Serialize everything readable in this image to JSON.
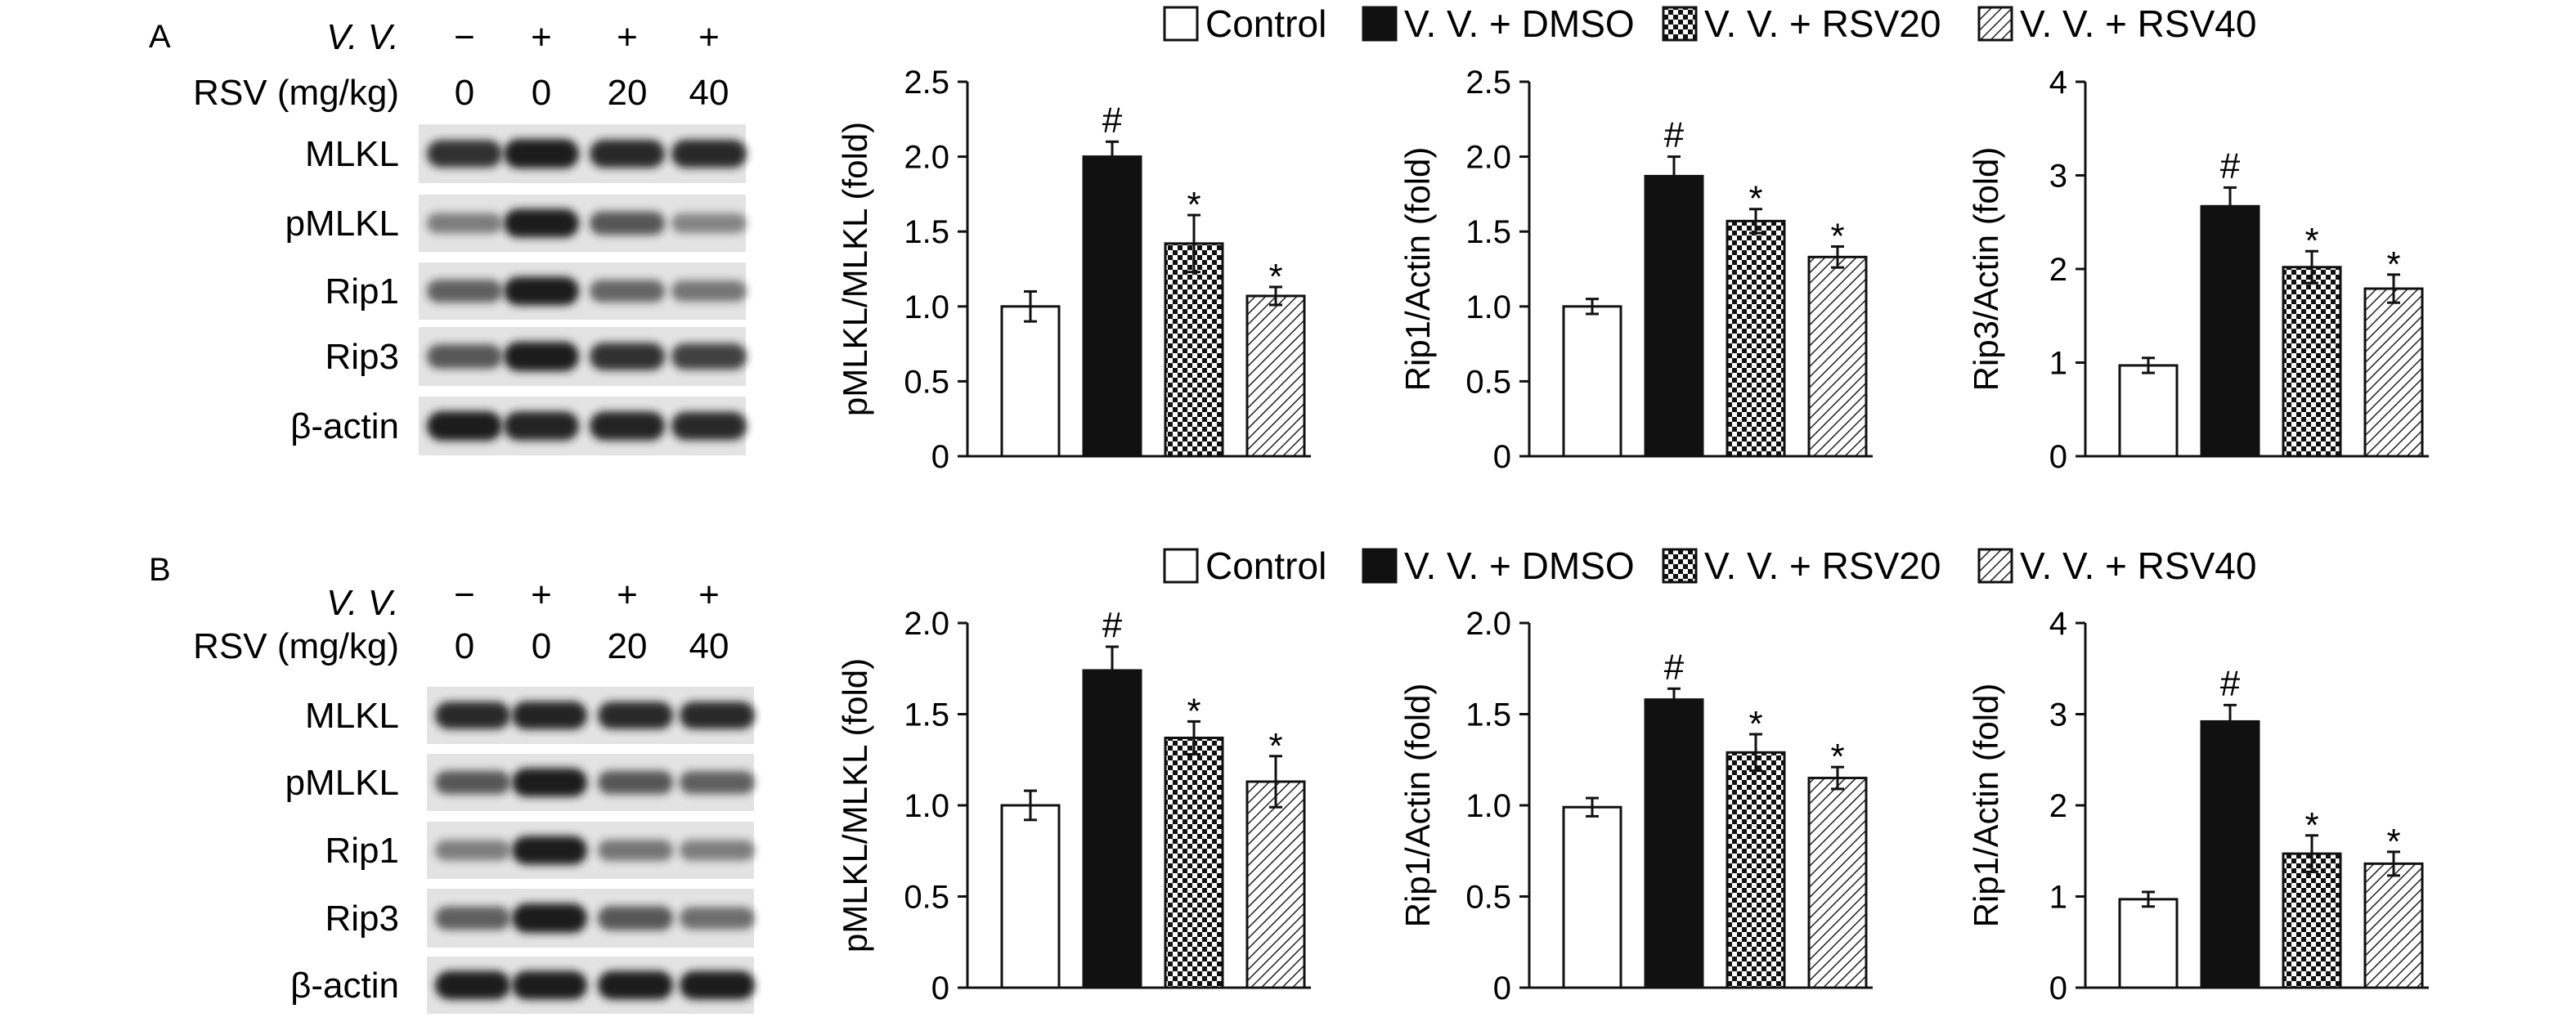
{
  "legend": [
    {
      "label": "Control",
      "fill": "white"
    },
    {
      "label": "V. V. + DMSO",
      "fill": "black"
    },
    {
      "label": "V. V. + RSV20",
      "fill": "checker"
    },
    {
      "label": "V. V. + RSV40",
      "fill": "hatch"
    }
  ],
  "colors": {
    "ink": "#111111",
    "blot_bg": "#e3e3e3",
    "band": "#1e1e1e"
  },
  "panels": [
    {
      "id": "A",
      "letter": "A",
      "blot": {
        "vv_label": "V. V.",
        "rsv_label": "RSV (mg/kg)",
        "vv_marks": [
          "−",
          "+",
          "+",
          "+"
        ],
        "rsv_doses": [
          "0",
          "0",
          "20",
          "40"
        ],
        "rows": [
          "MLKL",
          "pMLKL",
          "Rip1",
          "Rip3",
          "β-actin"
        ]
      }
    },
    {
      "id": "B",
      "letter": "B",
      "blot": {
        "vv_label": "V. V.",
        "rsv_label": "RSV (mg/kg)",
        "vv_marks": [
          "−",
          "+",
          "+",
          "+"
        ],
        "rsv_doses": [
          "0",
          "0",
          "20",
          "40"
        ],
        "rows": [
          "MLKL",
          "pMLKL",
          "Rip1",
          "Rip3",
          "β-actin"
        ]
      }
    }
  ],
  "chart_data": [
    {
      "panel": "A",
      "type": "bar",
      "ylabel": "pMLKL/MLKL (fold)",
      "ylim": [
        0,
        2.5
      ],
      "yticks": [
        "0",
        "0.5",
        "1.0",
        "1.5",
        "2.0",
        "2.5"
      ],
      "values": [
        1.0,
        2.0,
        1.42,
        1.07
      ],
      "errors": [
        0.1,
        0.1,
        0.19,
        0.06
      ],
      "marks": [
        "",
        "#",
        "*",
        "*"
      ]
    },
    {
      "panel": "A",
      "type": "bar",
      "ylabel": "Rip1/Actin (fold)",
      "ylim": [
        0,
        2.5
      ],
      "yticks": [
        "0",
        "0.5",
        "1.0",
        "1.5",
        "2.0",
        "2.5"
      ],
      "values": [
        1.0,
        1.87,
        1.57,
        1.33
      ],
      "errors": [
        0.05,
        0.13,
        0.08,
        0.07
      ],
      "marks": [
        "",
        "#",
        "*",
        "*"
      ]
    },
    {
      "panel": "A",
      "type": "bar",
      "ylabel": "Rip3/Actin (fold)",
      "ylim": [
        0,
        4
      ],
      "yticks": [
        "0",
        "1",
        "2",
        "3",
        "4"
      ],
      "values": [
        0.97,
        2.67,
        2.02,
        1.79
      ],
      "errors": [
        0.08,
        0.2,
        0.17,
        0.15
      ],
      "marks": [
        "",
        "#",
        "*",
        "*"
      ]
    },
    {
      "panel": "B",
      "type": "bar",
      "ylabel": "pMLKL/MLKL (fold)",
      "ylim": [
        0,
        2.0
      ],
      "yticks": [
        "0",
        "0.5",
        "1.0",
        "1.5",
        "2.0"
      ],
      "values": [
        1.0,
        1.74,
        1.37,
        1.13
      ],
      "errors": [
        0.08,
        0.13,
        0.09,
        0.14
      ],
      "marks": [
        "",
        "#",
        "*",
        "*"
      ]
    },
    {
      "panel": "B",
      "type": "bar",
      "ylabel": "Rip1/Actin (fold)",
      "ylim": [
        0,
        2.0
      ],
      "yticks": [
        "0",
        "0.5",
        "1.0",
        "1.5",
        "2.0"
      ],
      "values": [
        0.99,
        1.58,
        1.29,
        1.15
      ],
      "errors": [
        0.05,
        0.06,
        0.1,
        0.06
      ],
      "marks": [
        "",
        "#",
        "*",
        "*"
      ]
    },
    {
      "panel": "B",
      "type": "bar",
      "ylabel": "Rip1/Actin (fold)",
      "ylim": [
        0,
        4
      ],
      "yticks": [
        "0",
        "1",
        "2",
        "3",
        "4"
      ],
      "values": [
        0.97,
        2.92,
        1.47,
        1.36
      ],
      "errors": [
        0.08,
        0.18,
        0.2,
        0.13
      ],
      "marks": [
        "",
        "#",
        "*",
        "*"
      ]
    }
  ]
}
